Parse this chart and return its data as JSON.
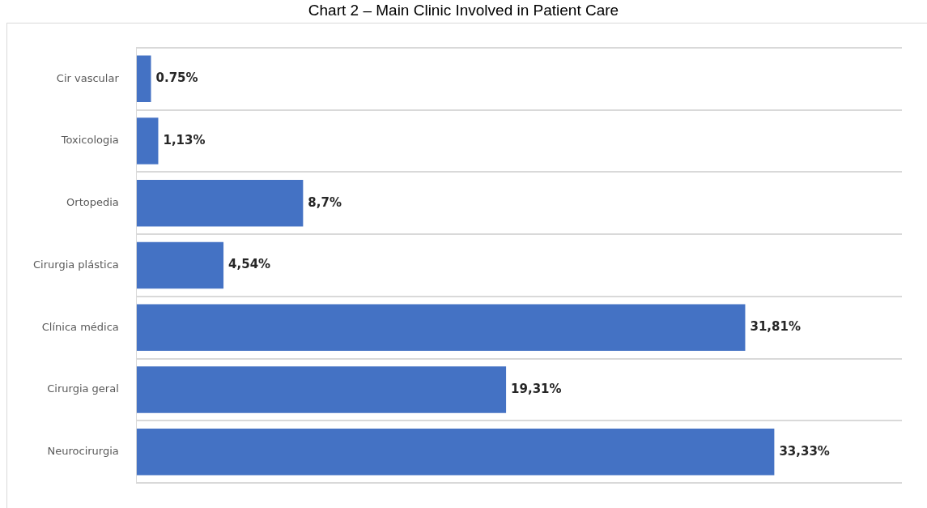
{
  "chart_data": {
    "type": "bar",
    "orientation": "horizontal",
    "title": "Chart 2 – Main Clinic Involved in Patient Care",
    "categories": [
      "Cir vascular",
      "Toxicologia",
      "Ortopedia",
      "Cirurgia plástica",
      "Clínica médica",
      "Cirurgia geral",
      "Neurocirurgia"
    ],
    "values": [
      0.75,
      1.13,
      8.7,
      4.54,
      31.81,
      19.31,
      33.33
    ],
    "value_labels": [
      "0.75%",
      "1,13%",
      "8,7%",
      "4,54%",
      "31,81%",
      "19,31%",
      "33,33%"
    ],
    "color": "#4472c4",
    "grid": "y",
    "legend": false
  }
}
